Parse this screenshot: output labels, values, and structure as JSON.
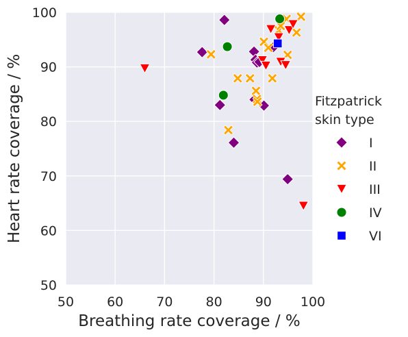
{
  "chart_data": {
    "type": "scatter",
    "xlabel": "Breathing rate coverage / %",
    "ylabel": "Heart rate coverage / %",
    "xlim": [
      50,
      100
    ],
    "ylim": [
      50,
      100
    ],
    "xticks": [
      50,
      60,
      70,
      80,
      90,
      100
    ],
    "yticks": [
      50,
      60,
      70,
      80,
      90,
      100
    ],
    "grid": true,
    "legend": {
      "title_lines": [
        "Fitzpatrick",
        "skin type"
      ],
      "placement": "right"
    },
    "series": [
      {
        "name": "I",
        "marker": "diamond",
        "color": "#800080",
        "points": [
          [
            82.1,
            98.6
          ],
          [
            77.6,
            92.7
          ],
          [
            88.1,
            92.8
          ],
          [
            88.4,
            91.3
          ],
          [
            88.7,
            90.8
          ],
          [
            89.2,
            90.9
          ],
          [
            88.2,
            84.0
          ],
          [
            81.2,
            83.0
          ],
          [
            90.1,
            82.9
          ],
          [
            84.0,
            76.1
          ],
          [
            94.9,
            69.4
          ],
          [
            92.0,
            93.6
          ]
        ]
      },
      {
        "name": "II",
        "marker": "x",
        "color": "#FFA500",
        "points": [
          [
            79.4,
            92.3
          ],
          [
            84.8,
            87.9
          ],
          [
            87.3,
            87.9
          ],
          [
            88.5,
            85.6
          ],
          [
            88.7,
            84.1
          ],
          [
            88.8,
            83.6
          ],
          [
            82.9,
            78.4
          ],
          [
            90.1,
            94.6
          ],
          [
            91.0,
            93.5
          ],
          [
            91.8,
            87.9
          ],
          [
            93.1,
            96.7
          ],
          [
            94.7,
            98.8
          ],
          [
            94.9,
            92.2
          ],
          [
            96.7,
            96.3
          ],
          [
            97.6,
            99.2
          ],
          [
            93.5,
            97.5
          ]
        ]
      },
      {
        "name": "III",
        "marker": "triangle-down",
        "color": "#FF0000",
        "points": [
          [
            66.0,
            89.7
          ],
          [
            89.8,
            91.2
          ],
          [
            90.5,
            90.2
          ],
          [
            91.5,
            96.9
          ],
          [
            93.1,
            95.4
          ],
          [
            93.5,
            90.9
          ],
          [
            94.5,
            90.3
          ],
          [
            95.2,
            96.7
          ],
          [
            96.0,
            97.8
          ],
          [
            98.1,
            64.5
          ]
        ]
      },
      {
        "name": "IV",
        "marker": "circle",
        "color": "#008000",
        "points": [
          [
            82.7,
            93.7
          ],
          [
            81.9,
            84.8
          ],
          [
            93.3,
            98.8
          ]
        ]
      },
      {
        "name": "VI",
        "marker": "square",
        "color": "#0000FF",
        "points": [
          [
            92.9,
            94.3
          ]
        ]
      }
    ]
  }
}
